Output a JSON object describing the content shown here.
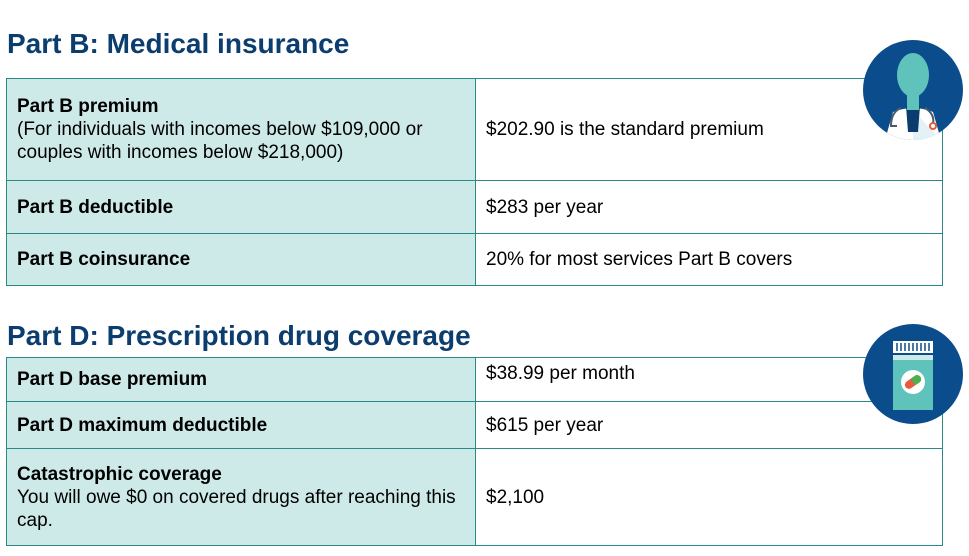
{
  "part_b": {
    "title": "Part B: Medical insurance",
    "rows": [
      {
        "label": "Part B premium",
        "note": "(For individuals with incomes below $109,000 or couples with incomes below $218,000)",
        "value": "$202.90 is the standard premium"
      },
      {
        "label": "Part B deductible",
        "value": "$283 per year"
      },
      {
        "label": "Part B coinsurance",
        "value": "20% for most services Part B covers"
      }
    ]
  },
  "part_d": {
    "title": "Part D: Prescription drug coverage",
    "rows": [
      {
        "label": "Part D base premium",
        "value": "$38.99 per month"
      },
      {
        "label": "Part D maximum deductible",
        "value": "$615 per year"
      },
      {
        "label": "Catastrophic coverage",
        "note": "You will owe $0 on covered drugs after reaching this cap.",
        "value": "$2,100"
      }
    ]
  },
  "icons": {
    "doctor": "doctor-icon",
    "pill_bottle": "pill-bottle-icon"
  },
  "colors": {
    "heading": "#0c3d6f",
    "label_bg": "#cdeae8",
    "border": "#2b8a86",
    "icon_bg": "#0b4d8c"
  }
}
